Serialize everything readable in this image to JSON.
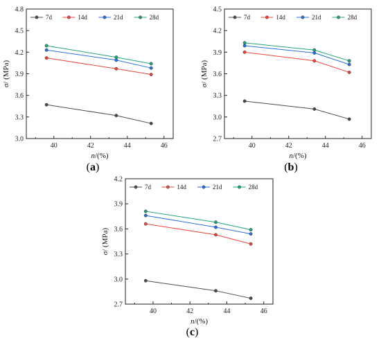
{
  "chart_data": [
    {
      "type": "line",
      "panel_label": {
        "open": "(",
        "letter": "a",
        "close": ")"
      },
      "xlabel": {
        "symbol": "n",
        "unit": "/(%)"
      },
      "ylabel": {
        "symbol": "σ",
        "unit": "/ (MPa)"
      },
      "xlim": [
        38.5,
        46.5
      ],
      "ylim": [
        3.0,
        4.8
      ],
      "xticks": [
        "40",
        "42",
        "44",
        "46"
      ],
      "yticks": [
        "3.0",
        "3.3",
        "3.6",
        "3.9",
        "4.2",
        "4.5",
        "4.8"
      ],
      "x": [
        39.6,
        43.4,
        45.3
      ],
      "legend_position": "top-left",
      "series": [
        {
          "name": "7d",
          "color": "#4a4a4a",
          "values": [
            3.47,
            3.32,
            3.21
          ]
        },
        {
          "name": "14d",
          "color": "#e8453c",
          "values": [
            4.12,
            3.97,
            3.89
          ]
        },
        {
          "name": "21d",
          "color": "#2a6fdb",
          "values": [
            4.23,
            4.09,
            3.98
          ]
        },
        {
          "name": "28d",
          "color": "#1fa37a",
          "values": [
            4.29,
            4.13,
            4.04
          ]
        }
      ]
    },
    {
      "type": "line",
      "panel_label": {
        "open": "(",
        "letter": "b",
        "close": ")"
      },
      "xlabel": {
        "symbol": "n",
        "unit": "/(%)"
      },
      "ylabel": {
        "symbol": "σ",
        "unit": "/ (MPa)"
      },
      "xlim": [
        38.5,
        46.5
      ],
      "ylim": [
        2.7,
        4.5
      ],
      "xticks": [
        "40",
        "42",
        "44",
        "46"
      ],
      "yticks": [
        "2.7",
        "3.0",
        "3.3",
        "3.6",
        "3.9",
        "4.2",
        "4.5"
      ],
      "x": [
        39.6,
        43.4,
        45.3
      ],
      "legend_position": "top-left",
      "series": [
        {
          "name": "7d",
          "color": "#4a4a4a",
          "values": [
            3.22,
            3.11,
            2.97
          ]
        },
        {
          "name": "14d",
          "color": "#e8453c",
          "values": [
            3.9,
            3.78,
            3.62
          ]
        },
        {
          "name": "21d",
          "color": "#2a6fdb",
          "values": [
            3.99,
            3.89,
            3.73
          ]
        },
        {
          "name": "28d",
          "color": "#1fa37a",
          "values": [
            4.03,
            3.93,
            3.78
          ]
        }
      ]
    },
    {
      "type": "line",
      "panel_label": {
        "open": "(",
        "letter": "c",
        "close": ")"
      },
      "xlabel": {
        "symbol": "n",
        "unit": "/(%)"
      },
      "ylabel": {
        "symbol": "σ",
        "unit": "/ (MPa)"
      },
      "xlim": [
        38.5,
        46.5
      ],
      "ylim": [
        2.7,
        4.2
      ],
      "xticks": [
        "40",
        "42",
        "44",
        "46"
      ],
      "yticks": [
        "2.7",
        "3.0",
        "3.3",
        "3.6",
        "3.9",
        "4.2"
      ],
      "x": [
        39.6,
        43.4,
        45.3
      ],
      "legend_position": "top-left",
      "series": [
        {
          "name": "7d",
          "color": "#4a4a4a",
          "values": [
            2.98,
            2.86,
            2.77
          ]
        },
        {
          "name": "14d",
          "color": "#e8453c",
          "values": [
            3.66,
            3.53,
            3.42
          ]
        },
        {
          "name": "21d",
          "color": "#2a6fdb",
          "values": [
            3.76,
            3.62,
            3.54
          ]
        },
        {
          "name": "28d",
          "color": "#1fa37a",
          "values": [
            3.81,
            3.68,
            3.59
          ]
        }
      ]
    }
  ]
}
